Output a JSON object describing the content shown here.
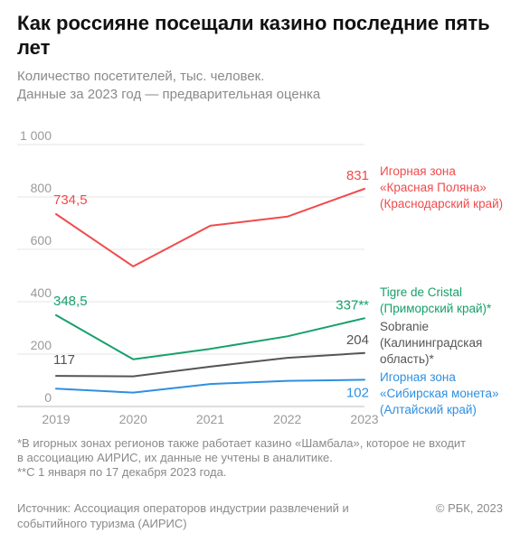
{
  "header": {
    "title": "Как россияне посещали казино последние пять лет",
    "subtitle_line1": "Количество посетителей, тыс. человек.",
    "subtitle_line2": "Данные за 2023 год — предварительная оценка"
  },
  "chart_data": {
    "type": "line",
    "x": [
      "2019",
      "2020",
      "2021",
      "2022",
      "2023"
    ],
    "ylim": [
      0,
      1000
    ],
    "yticks": [
      0,
      200,
      400,
      600,
      800,
      1000
    ],
    "ytick_labels": [
      "0",
      "200",
      "400",
      "600",
      "800",
      "1 000"
    ],
    "grid": true,
    "series": [
      {
        "name": "Игорная зона «Красная Поляна» (Краснодарский край)",
        "label_lines": [
          "Игорная зона",
          "«Красная Поляна»",
          "(Краснодарский край)"
        ],
        "color": "#f04b4c",
        "values": [
          734.5,
          535,
          690,
          725,
          831
        ],
        "start_label": "734,5",
        "end_label": "831"
      },
      {
        "name": "Tigre de Cristal (Приморский край)*",
        "label_lines": [
          "Tigre de Cristal",
          "(Приморский край)*"
        ],
        "color": "#17a06b",
        "values": [
          348.5,
          180,
          220,
          268,
          337
        ],
        "start_label": "348,5",
        "end_label": "337**"
      },
      {
        "name": "Sobranie (Калининградская область)*",
        "label_lines": [
          "Sobranie",
          "(Калининградская",
          "область)*"
        ],
        "color": "#555555",
        "values": [
          117,
          115,
          152,
          186,
          204
        ],
        "start_label": "117",
        "end_label": "204"
      },
      {
        "name": "Игорная зона «Сибирская монета» (Алтайский край)",
        "label_lines": [
          "Игорная зона",
          "«Сибирская монета»",
          " (Алтайский край)"
        ],
        "color": "#2f8fe0",
        "values": [
          68,
          53,
          86,
          98,
          102
        ],
        "start_label": "",
        "end_label": "102"
      }
    ]
  },
  "footnotes": {
    "note1_line1": "*В игорных зонах регионов также работает казино «Шамбала», которое не входит",
    "note1_line2": "в ассоциацию АИРИС, их данные не учтены в аналитике.",
    "note2": "**С 1 января по 17 декабря 2023 года."
  },
  "footer": {
    "source_line1": "Источник: Ассоциация операторов индустрии развлечений и",
    "source_line2": "событийного туризма (АИРИС)",
    "copyright": "© РБК, 2023"
  },
  "colors": {
    "axis_text": "#9a9a9a",
    "grid": "#e4e4e4",
    "baseline": "#bdbdbd"
  }
}
